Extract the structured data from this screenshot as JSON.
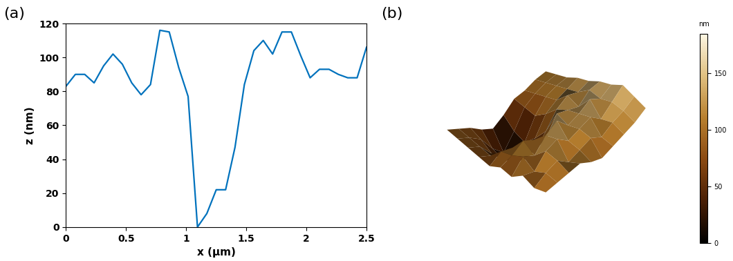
{
  "chart_data": [
    {
      "type": "line",
      "title": "(a)",
      "x_label": "x (μm)",
      "y_label": "z (nm)",
      "x": [
        0,
        0.078,
        0.156,
        0.234,
        0.313,
        0.391,
        0.469,
        0.547,
        0.625,
        0.703,
        0.781,
        0.859,
        0.938,
        1.016,
        1.094,
        1.172,
        1.25,
        1.328,
        1.406,
        1.484,
        1.563,
        1.641,
        1.719,
        1.797,
        1.875,
        1.953,
        2.031,
        2.109,
        2.188,
        2.266,
        2.344,
        2.422,
        2.5
      ],
      "values": [
        83,
        90,
        90,
        85,
        95,
        102,
        96,
        85,
        78,
        84,
        116,
        115,
        94,
        77,
        0,
        8,
        22,
        22,
        47,
        84,
        104,
        110,
        102,
        115,
        115,
        101,
        88,
        93,
        93,
        90,
        88,
        88,
        106
      ],
      "color": "#0072bd",
      "xlim": [
        0,
        2.5
      ],
      "xticks": [
        0,
        0.5,
        1,
        1.5,
        2,
        2.5
      ],
      "ylim": [
        0,
        120
      ],
      "yticks": [
        0,
        20,
        40,
        60,
        80,
        100,
        120
      ]
    },
    {
      "type": "surface",
      "title": "(b)",
      "tick_labels": false,
      "z": [
        [
          95,
          100,
          105,
          110,
          100,
          95,
          105,
          115,
          125,
          140
        ],
        [
          90,
          105,
          115,
          100,
          110,
          120,
          110,
          125,
          135,
          150
        ],
        [
          100,
          95,
          120,
          130,
          115,
          125,
          135,
          120,
          140,
          160
        ],
        [
          85,
          110,
          100,
          125,
          140,
          120,
          130,
          145,
          135,
          150
        ],
        [
          90,
          100,
          115,
          105,
          95,
          130,
          125,
          120,
          140,
          145
        ],
        [
          80,
          95,
          90,
          70,
          60,
          85,
          115,
          130,
          125,
          135
        ],
        [
          85,
          75,
          65,
          45,
          30,
          60,
          95,
          110,
          120,
          130
        ],
        [
          90,
          80,
          55,
          30,
          15,
          40,
          80,
          105,
          115,
          120
        ],
        [
          95,
          85,
          70,
          40,
          20,
          50,
          85,
          100,
          110,
          115
        ],
        [
          100,
          90,
          80,
          65,
          55,
          70,
          90,
          95,
          105,
          110
        ]
      ],
      "zlim": [
        0,
        185
      ],
      "colorbar": {
        "label": "nm",
        "lim": [
          0,
          185
        ],
        "ticks": [
          0,
          50,
          100,
          150
        ]
      }
    }
  ]
}
